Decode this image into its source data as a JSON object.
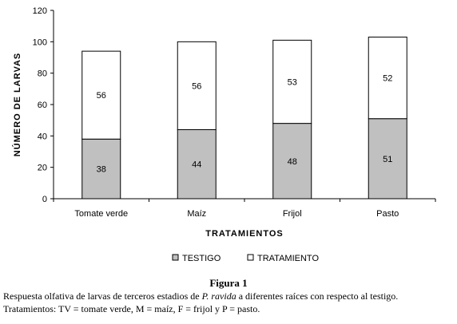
{
  "colors": {
    "testigo": "#c0c0c0",
    "tratamiento": "#ffffff",
    "axis": "#000000"
  },
  "chart_data": {
    "type": "bar",
    "stacked": true,
    "categories": [
      "Tomate verde",
      "Maíz",
      "Frijol",
      "Pasto"
    ],
    "series": [
      {
        "name": "TESTIGO",
        "values": [
          38,
          44,
          48,
          51
        ],
        "color": "#c0c0c0"
      },
      {
        "name": "TRATAMIENTO",
        "values": [
          56,
          56,
          53,
          52
        ],
        "color": "#ffffff"
      }
    ],
    "ylabel": "NÚMERO DE LARVAS",
    "xlabel": "TRATAMIENTOS",
    "ylim": [
      0,
      120
    ],
    "yticks": [
      0,
      20,
      40,
      60,
      80,
      100,
      120
    ],
    "grid": false,
    "legend": "bottom"
  },
  "caption": {
    "title": "Figura 1",
    "line1_pre": "Respuesta olfativa de larvas de terceros estadios de ",
    "line1_species": "P. ravida",
    "line1_post": " a diferentes raíces con respecto al testigo.",
    "line2": "Tratamientos: TV = tomate verde, M = maíz, F = frijol y P = pasto."
  }
}
